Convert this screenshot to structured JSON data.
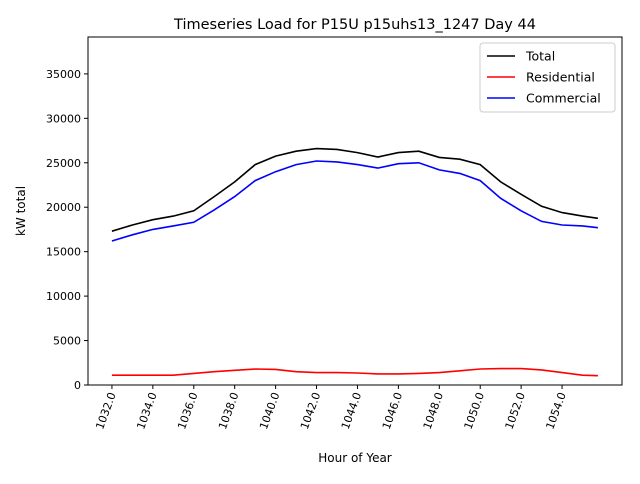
{
  "chart_data": {
    "type": "line",
    "title": "Timeseries Load for P15U p15uhs13_1247  Day 44",
    "xlabel": "Hour of Year",
    "ylabel": "kW total",
    "xlim": [
      1030.83,
      1056.93
    ],
    "ylim": [
      0,
      39150
    ],
    "xticks": [
      1032,
      1034,
      1036,
      1038,
      1040,
      1042,
      1044,
      1046,
      1048,
      1050,
      1052,
      1054
    ],
    "xtick_labels": [
      "1032.0",
      "1034.0",
      "1036.0",
      "1038.0",
      "1040.0",
      "1042.0",
      "1044.0",
      "1046.0",
      "1048.0",
      "1050.0",
      "1052.0",
      "1054.0"
    ],
    "yticks": [
      0,
      5000,
      10000,
      15000,
      20000,
      25000,
      30000,
      35000
    ],
    "ytick_labels": [
      "0",
      "5000",
      "10000",
      "15000",
      "20000",
      "25000",
      "30000",
      "35000"
    ],
    "legend_position": "top-right",
    "grid": false,
    "x": [
      1032,
      1033,
      1034,
      1035,
      1036,
      1037,
      1038,
      1039,
      1040,
      1041,
      1042,
      1043,
      1044,
      1045,
      1046,
      1047,
      1048,
      1049,
      1050,
      1051,
      1052,
      1053,
      1054,
      1055,
      1055.75
    ],
    "series": [
      {
        "name": "Total",
        "color": "#000000",
        "values": [
          17300,
          18000,
          18600,
          19000,
          19600,
          21200,
          22850,
          24800,
          25750,
          26300,
          26600,
          26500,
          26150,
          25650,
          26150,
          26300,
          25600,
          25400,
          24800,
          22850,
          21450,
          20100,
          19400,
          19000,
          18750
        ]
      },
      {
        "name": "Residential",
        "color": "#ff0000",
        "values": [
          1100,
          1100,
          1100,
          1100,
          1300,
          1500,
          1650,
          1800,
          1750,
          1500,
          1400,
          1400,
          1350,
          1250,
          1250,
          1300,
          1400,
          1600,
          1800,
          1850,
          1850,
          1700,
          1400,
          1100,
          1050
        ]
      },
      {
        "name": "Commercial",
        "color": "#0000ff",
        "values": [
          16200,
          16900,
          17500,
          17900,
          18300,
          19700,
          21200,
          23000,
          24000,
          24800,
          25200,
          25100,
          24800,
          24400,
          24900,
          25000,
          24200,
          23800,
          23000,
          21000,
          19600,
          18400,
          18000,
          17900,
          17700
        ]
      }
    ]
  }
}
